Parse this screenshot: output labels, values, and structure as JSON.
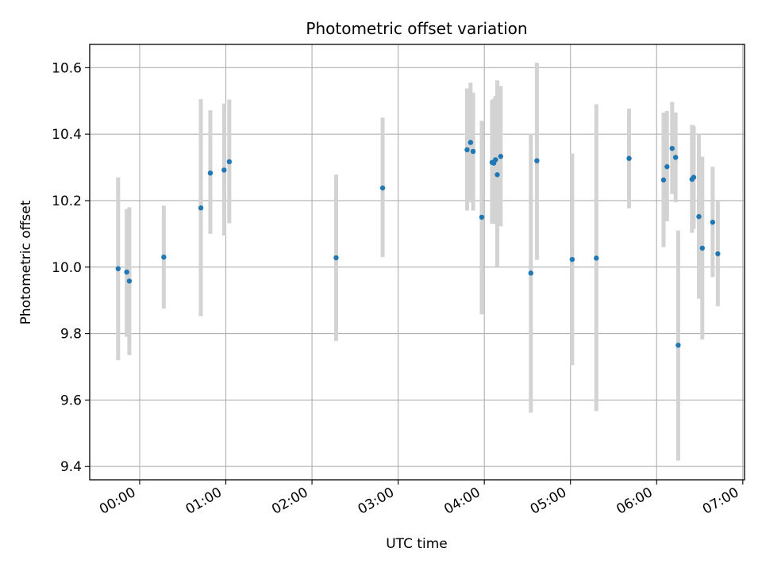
{
  "chart_data": {
    "type": "scatter",
    "title": "Photometric offset variation",
    "xlabel": "UTC time",
    "ylabel": "Photometric offset",
    "x_unit": "hours (UTC)",
    "xlim": [
      -0.58,
      7.02
    ],
    "ylim": [
      9.36,
      10.67
    ],
    "x_ticks": [
      {
        "value": 0,
        "label": "00:00"
      },
      {
        "value": 1,
        "label": "01:00"
      },
      {
        "value": 2,
        "label": "02:00"
      },
      {
        "value": 3,
        "label": "03:00"
      },
      {
        "value": 4,
        "label": "04:00"
      },
      {
        "value": 5,
        "label": "05:00"
      },
      {
        "value": 6,
        "label": "06:00"
      },
      {
        "value": 7,
        "label": "07:00"
      }
    ],
    "y_ticks": [
      {
        "value": 9.4,
        "label": "9.4"
      },
      {
        "value": 9.6,
        "label": "9.6"
      },
      {
        "value": 9.8,
        "label": "9.8"
      },
      {
        "value": 10.0,
        "label": "10.0"
      },
      {
        "value": 10.2,
        "label": "10.2"
      },
      {
        "value": 10.4,
        "label": "10.4"
      },
      {
        "value": 10.6,
        "label": "10.6"
      }
    ],
    "grid": true,
    "point_color": "#1f77b4",
    "errorbar_color": "#d3d3d3",
    "points": [
      {
        "x": -0.25,
        "y": 9.995,
        "err_low": 9.72,
        "err_high": 10.27
      },
      {
        "x": -0.15,
        "y": 9.985,
        "err_low": 9.79,
        "err_high": 10.175
      },
      {
        "x": -0.12,
        "y": 9.958,
        "err_low": 9.735,
        "err_high": 10.18
      },
      {
        "x": 0.28,
        "y": 10.03,
        "err_low": 9.875,
        "err_high": 10.185
      },
      {
        "x": 0.71,
        "y": 10.178,
        "err_low": 9.852,
        "err_high": 10.505
      },
      {
        "x": 0.82,
        "y": 10.283,
        "err_low": 10.1,
        "err_high": 10.472
      },
      {
        "x": 0.98,
        "y": 10.292,
        "err_low": 10.095,
        "err_high": 10.492
      },
      {
        "x": 1.04,
        "y": 10.317,
        "err_low": 10.132,
        "err_high": 10.504
      },
      {
        "x": 2.28,
        "y": 10.028,
        "err_low": 9.778,
        "err_high": 10.278
      },
      {
        "x": 2.82,
        "y": 10.238,
        "err_low": 10.03,
        "err_high": 10.45
      },
      {
        "x": 3.8,
        "y": 10.353,
        "err_low": 10.17,
        "err_high": 10.538
      },
      {
        "x": 3.84,
        "y": 10.375,
        "err_low": 10.195,
        "err_high": 10.555
      },
      {
        "x": 3.87,
        "y": 10.348,
        "err_low": 10.17,
        "err_high": 10.525
      },
      {
        "x": 3.97,
        "y": 10.15,
        "err_low": 9.858,
        "err_high": 10.44
      },
      {
        "x": 4.09,
        "y": 10.315,
        "err_low": 10.13,
        "err_high": 10.503
      },
      {
        "x": 4.11,
        "y": 10.313,
        "err_low": 10.13,
        "err_high": 10.507
      },
      {
        "x": 4.13,
        "y": 10.323,
        "err_low": 10.13,
        "err_high": 10.515
      },
      {
        "x": 4.15,
        "y": 10.278,
        "err_low": 10.0,
        "err_high": 10.562
      },
      {
        "x": 4.19,
        "y": 10.333,
        "err_low": 10.123,
        "err_high": 10.545
      },
      {
        "x": 4.54,
        "y": 9.982,
        "err_low": 9.562,
        "err_high": 10.402
      },
      {
        "x": 4.61,
        "y": 10.32,
        "err_low": 10.022,
        "err_high": 10.615
      },
      {
        "x": 5.02,
        "y": 10.023,
        "err_low": 9.705,
        "err_high": 10.342
      },
      {
        "x": 5.3,
        "y": 10.027,
        "err_low": 9.567,
        "err_high": 10.49
      },
      {
        "x": 5.68,
        "y": 10.327,
        "err_low": 10.177,
        "err_high": 10.477
      },
      {
        "x": 6.08,
        "y": 10.262,
        "err_low": 10.06,
        "err_high": 10.465
      },
      {
        "x": 6.12,
        "y": 10.302,
        "err_low": 10.138,
        "err_high": 10.47
      },
      {
        "x": 6.18,
        "y": 10.357,
        "err_low": 10.22,
        "err_high": 10.497
      },
      {
        "x": 6.22,
        "y": 10.33,
        "err_low": 10.195,
        "err_high": 10.465
      },
      {
        "x": 6.25,
        "y": 9.765,
        "err_low": 9.418,
        "err_high": 10.11
      },
      {
        "x": 6.41,
        "y": 10.264,
        "err_low": 10.103,
        "err_high": 10.428
      },
      {
        "x": 6.43,
        "y": 10.27,
        "err_low": 10.115,
        "err_high": 10.425
      },
      {
        "x": 6.49,
        "y": 10.152,
        "err_low": 9.905,
        "err_high": 10.4
      },
      {
        "x": 6.53,
        "y": 10.057,
        "err_low": 9.782,
        "err_high": 10.332
      },
      {
        "x": 6.65,
        "y": 10.135,
        "err_low": 9.97,
        "err_high": 10.302
      },
      {
        "x": 6.71,
        "y": 10.04,
        "err_low": 9.882,
        "err_high": 10.2
      }
    ]
  }
}
